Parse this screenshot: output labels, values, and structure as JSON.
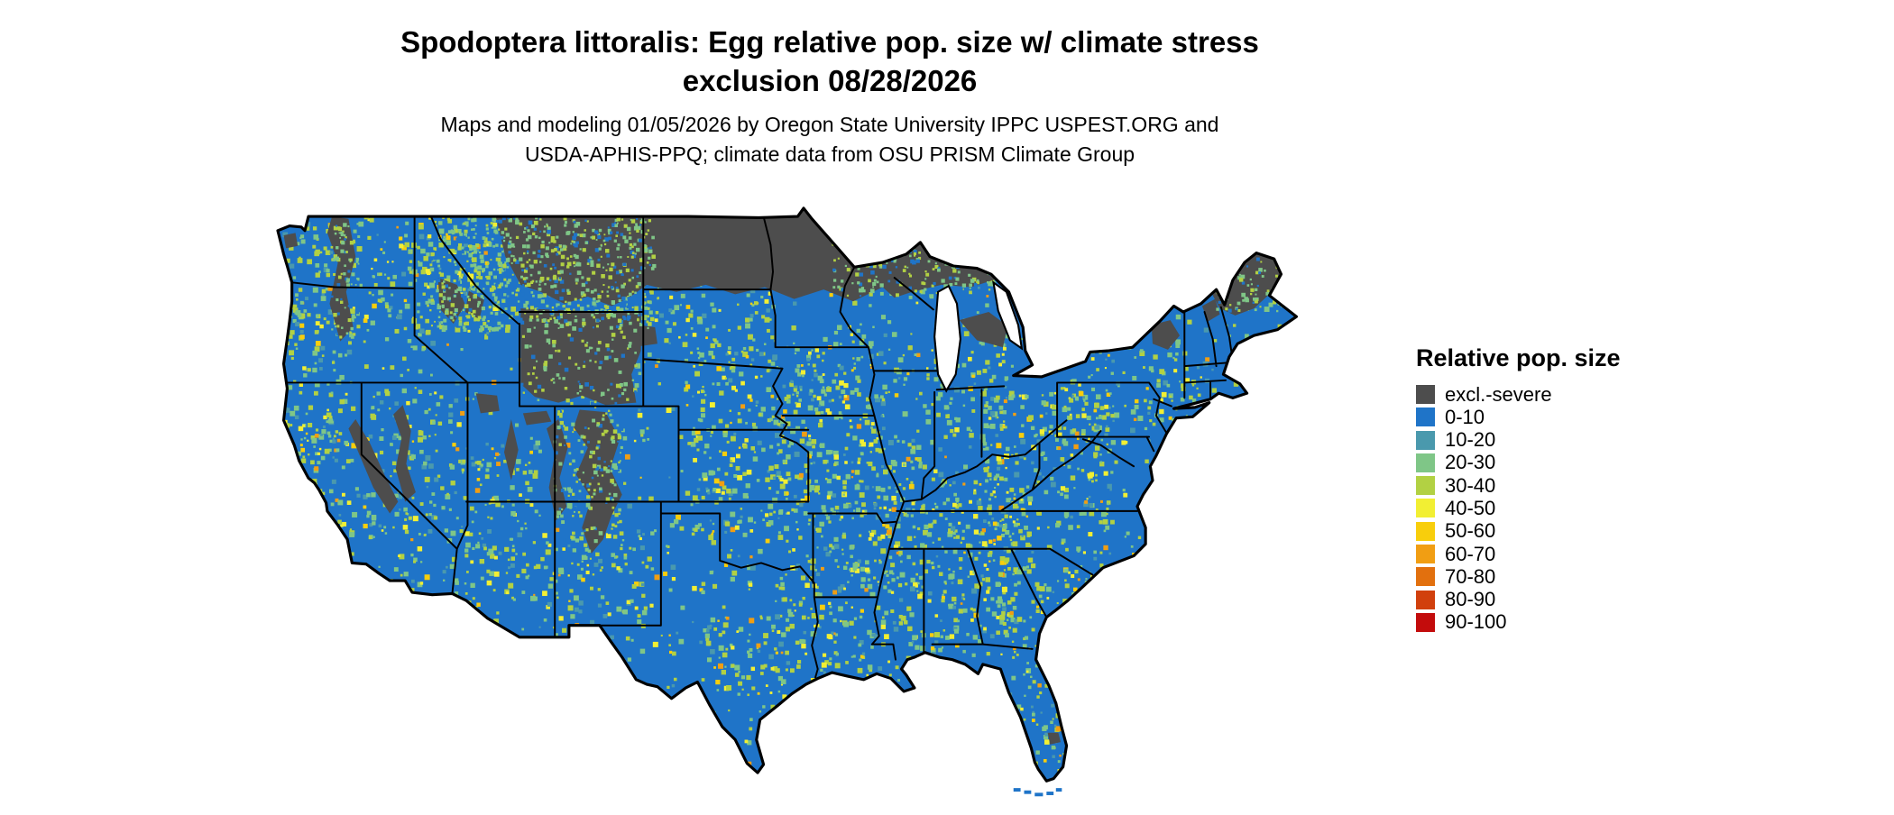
{
  "header": {
    "title_line1": "Spodoptera littoralis: Egg relative pop. size w/ climate stress",
    "title_line2": "exclusion 08/28/2026",
    "subtitle_line1": "Maps and modeling 01/05/2026 by Oregon State University IPPC USPEST.ORG and",
    "subtitle_line2": "USDA-APHIS-PPQ; climate data from OSU PRISM Climate Group"
  },
  "legend": {
    "title": "Relative pop. size",
    "items": [
      {
        "label": "excl.-severe",
        "color": "#4d4d4d"
      },
      {
        "label": "0-10",
        "color": "#1f74c8"
      },
      {
        "label": "10-20",
        "color": "#4a99ad"
      },
      {
        "label": "20-30",
        "color": "#7fc687"
      },
      {
        "label": "30-40",
        "color": "#b2d143"
      },
      {
        "label": "40-50",
        "color": "#f2ef33"
      },
      {
        "label": "50-60",
        "color": "#f8ce0c"
      },
      {
        "label": "60-70",
        "color": "#f19e13"
      },
      {
        "label": "70-80",
        "color": "#e2700e"
      },
      {
        "label": "80-90",
        "color": "#d1400d"
      },
      {
        "label": "90-100",
        "color": "#c30c0c"
      }
    ]
  },
  "map": {
    "outline_color": "#000000",
    "water_color": "#ffffff"
  }
}
